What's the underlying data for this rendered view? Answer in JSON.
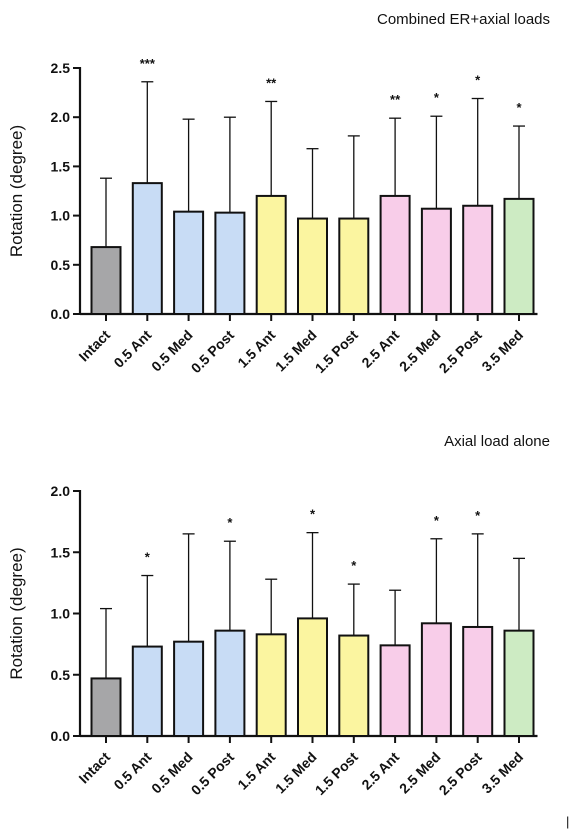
{
  "chart_data": [
    {
      "type": "bar",
      "title": "Combined ER+axial loads",
      "ylabel": "Rotation  (degree)",
      "xlabel": "",
      "ylim": [
        0,
        2.5
      ],
      "yticks": [
        "0.0",
        "0.5",
        "1.0",
        "1.5",
        "2.0",
        "2.5"
      ],
      "categories": [
        "Intact",
        "0.5 Ant",
        "0.5 Med",
        "0.5 Post",
        "1.5 Ant",
        "1.5 Med",
        "1.5 Post",
        "2.5 Ant",
        "2.5 Med",
        "2.5 Post",
        "3.5 Med"
      ],
      "values": [
        0.68,
        1.33,
        1.04,
        1.03,
        1.2,
        0.97,
        0.97,
        1.2,
        1.07,
        1.1,
        1.17
      ],
      "error_upper": [
        1.38,
        2.36,
        1.98,
        2.0,
        2.16,
        1.68,
        1.81,
        1.99,
        2.01,
        2.19,
        1.91
      ],
      "significance": [
        "",
        "***",
        "",
        "",
        "**",
        "",
        "",
        "**",
        "*",
        "*",
        "*"
      ],
      "colors": [
        "#a6a6a8",
        "#c8dcf5",
        "#c8dcf5",
        "#c8dcf5",
        "#fbf5a0",
        "#fbf5a0",
        "#fbf5a0",
        "#f8cde9",
        "#f8cde9",
        "#f8cde9",
        "#cdebc3"
      ],
      "grid": false,
      "error_bars": "upper"
    },
    {
      "type": "bar",
      "title": "Axial load alone",
      "ylabel": "Rotation  (degree)",
      "xlabel": "",
      "ylim": [
        0,
        2.0
      ],
      "yticks": [
        "0.0",
        "0.5",
        "1.0",
        "1.5",
        "2.0"
      ],
      "categories": [
        "Intact",
        "0.5 Ant",
        "0.5 Med",
        "0.5 Post",
        "1.5 Ant",
        "1.5 Med",
        "1.5 Post",
        "2.5 Ant",
        "2.5 Med",
        "2.5 Post",
        "3.5 Med"
      ],
      "values": [
        0.47,
        0.73,
        0.77,
        0.86,
        0.83,
        0.96,
        0.82,
        0.74,
        0.92,
        0.89,
        0.86
      ],
      "error_upper": [
        1.04,
        1.31,
        1.65,
        1.59,
        1.28,
        1.66,
        1.24,
        1.19,
        1.61,
        1.65,
        1.45
      ],
      "significance": [
        "",
        "*",
        "",
        "*",
        "",
        "*",
        "*",
        "",
        "*",
        "*",
        ""
      ],
      "colors": [
        "#a6a6a8",
        "#c8dcf5",
        "#c8dcf5",
        "#c8dcf5",
        "#fbf5a0",
        "#fbf5a0",
        "#fbf5a0",
        "#f8cde9",
        "#f8cde9",
        "#f8cde9",
        "#cdebc3"
      ],
      "grid": false,
      "error_bars": "upper"
    }
  ],
  "stray_mark": "|"
}
